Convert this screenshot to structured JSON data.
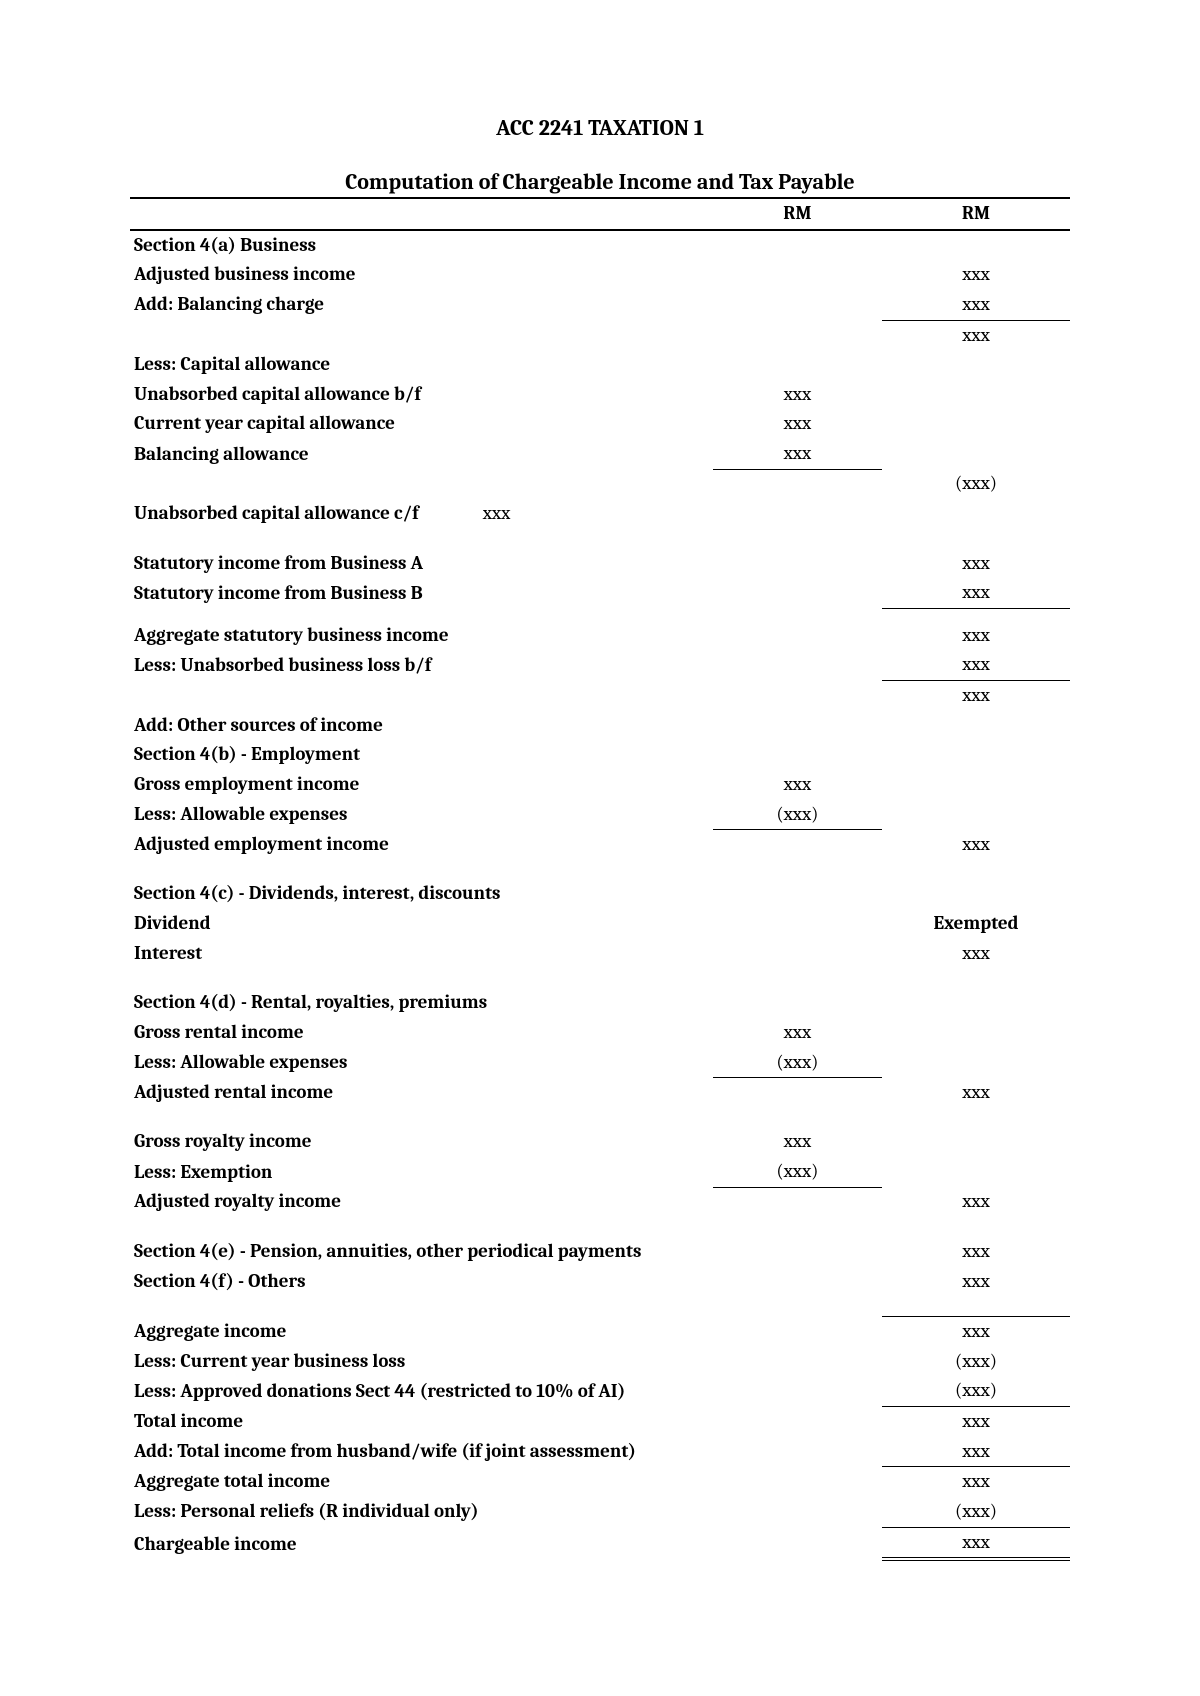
{
  "course_title": "ACC 2241 TAXATION 1",
  "table_title": "Computation of Chargeable Income and Tax Payable",
  "headers": {
    "rm1": "RM",
    "rm2": "RM"
  },
  "r": {
    "sec4a": "Section 4(a) Business",
    "adj_biz_income": "Adjusted business income",
    "adj_biz_income_v": "xxx",
    "add_bal_charge": "Add: Balancing charge",
    "add_bal_charge_v": "xxx",
    "subtotal1_v": "xxx",
    "less_cap_allow": "Less: Capital allowance",
    "unabs_ca_bf": "Unabsorbed capital allowance b/f",
    "unabs_ca_bf_v": "xxx",
    "curr_year_ca": "Current year capital allowance",
    "curr_year_ca_v": "xxx",
    "bal_allow": "Balancing allowance",
    "bal_allow_v": "xxx",
    "ca_paren_v": "(xxx)",
    "unabs_ca_cf": "Unabsorbed capital allowance  c/f",
    "unabs_ca_cf_note": "xxx",
    "stat_inc_a": "Statutory income from Business A",
    "stat_inc_a_v": "xxx",
    "stat_inc_b": "Statutory income from Business B",
    "stat_inc_b_v": "xxx",
    "agg_stat_biz": "Aggregate statutory business income",
    "agg_stat_biz_v": "xxx",
    "less_unabs_loss": "Less: Unabsorbed business loss b/f",
    "less_unabs_loss_v": "xxx",
    "subtotal2_v": "xxx",
    "add_other": "Add: Other sources of income",
    "sec4b": "Section 4(b) - Employment",
    "gross_emp": "Gross employment income",
    "gross_emp_v": "xxx",
    "less_allow_exp1": "Less: Allowable expenses",
    "less_allow_exp1_v": "(xxx)",
    "adj_emp_income": "Adjusted employment income",
    "adj_emp_income_v": "xxx",
    "sec4c": "Section 4(c) - Dividends, interest, discounts",
    "dividend": "Dividend",
    "dividend_v": "Exempted",
    "interest": "Interest",
    "interest_v": "xxx",
    "sec4d": "Section 4(d) - Rental, royalties, premiums",
    "gross_rental": "Gross rental income",
    "gross_rental_v": "xxx",
    "less_allow_exp2": "Less: Allowable expenses",
    "less_allow_exp2_v": "(xxx)",
    "adj_rental": "Adjusted rental income",
    "adj_rental_v": "xxx",
    "gross_royalty": "Gross royalty income",
    "gross_royalty_v": "xxx",
    "less_exemption": "Less: Exemption",
    "less_exemption_v": "(xxx)",
    "adj_royalty": "Adjusted royalty income",
    "adj_royalty_v": "xxx",
    "sec4e": "Section 4(e) - Pension, annuities, other periodical payments",
    "sec4e_v": "xxx",
    "sec4f": "Section 4(f) - Others",
    "sec4f_v": "xxx",
    "agg_income": "Aggregate income",
    "agg_income_v": "xxx",
    "less_curr_year_loss": "Less: Current year business loss",
    "less_curr_year_loss_v": "(xxx)",
    "less_donations": "Less: Approved donations Sect 44 (restricted to 10% of AI)",
    "less_donations_v": "(xxx)",
    "total_income": "Total income",
    "total_income_v": "xxx",
    "add_spouse": "Add: Total income from husband/wife (if joint assessment)",
    "add_spouse_v": "xxx",
    "agg_total_income": "Aggregate total income",
    "agg_total_income_v": "xxx",
    "less_personal_reliefs": "Less: Personal reliefs (R individual only)",
    "less_personal_reliefs_v": "(xxx)",
    "chargeable_income": "Chargeable income",
    "chargeable_income_v": "xxx"
  }
}
